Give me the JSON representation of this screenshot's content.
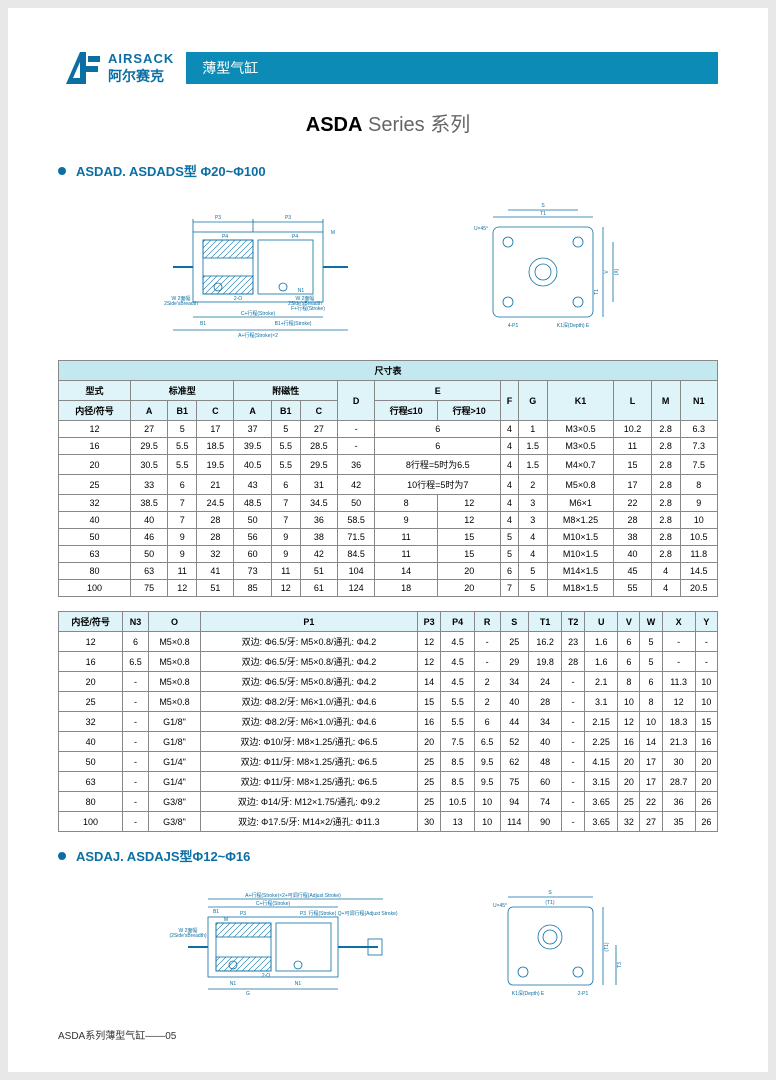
{
  "logo": {
    "en": "AIRSACK",
    "cn": "阿尔赛克"
  },
  "banner": "薄型气缸",
  "series": {
    "bold": "ASDA",
    "series_word": "Series",
    "cn": "系列"
  },
  "section1": "ASDAD. ASDADS型 Φ20~Φ100",
  "section2": "ASDAJ. ASDAJS型Φ12~Φ16",
  "dim_table_title": "尺寸表",
  "t1_headers": {
    "model": "型式",
    "std": "标准型",
    "mag": "附磁性",
    "bore": "内径/符号",
    "cols": [
      "A",
      "B1",
      "C",
      "A",
      "B1",
      "C",
      "D",
      "行程≤10",
      "行程>10",
      "F",
      "G",
      "K1",
      "L",
      "M",
      "N1"
    ],
    "E": "E"
  },
  "t1_rows": [
    [
      "12",
      "27",
      "5",
      "17",
      "37",
      "5",
      "27",
      "-",
      "6",
      "",
      "4",
      "1",
      "M3×0.5",
      "10.2",
      "2.8",
      "6.3"
    ],
    [
      "16",
      "29.5",
      "5.5",
      "18.5",
      "39.5",
      "5.5",
      "28.5",
      "-",
      "6",
      "",
      "4",
      "1.5",
      "M3×0.5",
      "11",
      "2.8",
      "7.3"
    ],
    [
      "20",
      "30.5",
      "5.5",
      "19.5",
      "40.5",
      "5.5",
      "29.5",
      "36",
      "8行程=5时为6.5",
      "",
      "4",
      "1.5",
      "M4×0.7",
      "15",
      "2.8",
      "7.5"
    ],
    [
      "25",
      "33",
      "6",
      "21",
      "43",
      "6",
      "31",
      "42",
      "10行程=5时为7",
      "",
      "4",
      "2",
      "M5×0.8",
      "17",
      "2.8",
      "8"
    ],
    [
      "32",
      "38.5",
      "7",
      "24.5",
      "48.5",
      "7",
      "34.5",
      "50",
      "8",
      "12",
      "4",
      "3",
      "M6×1",
      "22",
      "2.8",
      "9"
    ],
    [
      "40",
      "40",
      "7",
      "28",
      "50",
      "7",
      "36",
      "58.5",
      "9",
      "12",
      "4",
      "3",
      "M8×1.25",
      "28",
      "2.8",
      "10"
    ],
    [
      "50",
      "46",
      "9",
      "28",
      "56",
      "9",
      "38",
      "71.5",
      "11",
      "15",
      "5",
      "4",
      "M10×1.5",
      "38",
      "2.8",
      "10.5"
    ],
    [
      "63",
      "50",
      "9",
      "32",
      "60",
      "9",
      "42",
      "84.5",
      "11",
      "15",
      "5",
      "4",
      "M10×1.5",
      "40",
      "2.8",
      "11.8"
    ],
    [
      "80",
      "63",
      "11",
      "41",
      "73",
      "11",
      "51",
      "104",
      "14",
      "20",
      "6",
      "5",
      "M14×1.5",
      "45",
      "4",
      "14.5"
    ],
    [
      "100",
      "75",
      "12",
      "51",
      "85",
      "12",
      "61",
      "124",
      "18",
      "20",
      "7",
      "5",
      "M18×1.5",
      "55",
      "4",
      "20.5"
    ]
  ],
  "t2_headers": [
    "内径/符号",
    "N3",
    "O",
    "P1",
    "P3",
    "P4",
    "R",
    "S",
    "T1",
    "T2",
    "U",
    "V",
    "W",
    "X",
    "Y"
  ],
  "t2_rows": [
    [
      "12",
      "6",
      "M5×0.8",
      "双边: Φ6.5/牙: M5×0.8/通孔: Φ4.2",
      "12",
      "4.5",
      "-",
      "25",
      "16.2",
      "23",
      "1.6",
      "6",
      "5",
      "-",
      "-"
    ],
    [
      "16",
      "6.5",
      "M5×0.8",
      "双边: Φ6.5/牙: M5×0.8/通孔: Φ4.2",
      "12",
      "4.5",
      "-",
      "29",
      "19.8",
      "28",
      "1.6",
      "6",
      "5",
      "-",
      "-"
    ],
    [
      "20",
      "-",
      "M5×0.8",
      "双边: Φ6.5/牙: M5×0.8/通孔: Φ4.2",
      "14",
      "4.5",
      "2",
      "34",
      "24",
      "-",
      "2.1",
      "8",
      "6",
      "11.3",
      "10"
    ],
    [
      "25",
      "-",
      "M5×0.8",
      "双边: Φ8.2/牙: M6×1.0/通孔: Φ4.6",
      "15",
      "5.5",
      "2",
      "40",
      "28",
      "-",
      "3.1",
      "10",
      "8",
      "12",
      "10"
    ],
    [
      "32",
      "-",
      "G1/8\"",
      "双边: Φ8.2/牙: M6×1.0/通孔: Φ4.6",
      "16",
      "5.5",
      "6",
      "44",
      "34",
      "-",
      "2.15",
      "12",
      "10",
      "18.3",
      "15"
    ],
    [
      "40",
      "-",
      "G1/8\"",
      "双边: Φ10/牙: M8×1.25/通孔: Φ6.5",
      "20",
      "7.5",
      "6.5",
      "52",
      "40",
      "-",
      "2.25",
      "16",
      "14",
      "21.3",
      "16"
    ],
    [
      "50",
      "-",
      "G1/4\"",
      "双边: Φ11/牙: M8×1.25/通孔: Φ6.5",
      "25",
      "8.5",
      "9.5",
      "62",
      "48",
      "-",
      "4.15",
      "20",
      "17",
      "30",
      "20"
    ],
    [
      "63",
      "-",
      "G1/4\"",
      "双边: Φ11/牙: M8×1.25/通孔: Φ6.5",
      "25",
      "8.5",
      "9.5",
      "75",
      "60",
      "-",
      "3.15",
      "20",
      "17",
      "28.7",
      "20"
    ],
    [
      "80",
      "-",
      "G3/8\"",
      "双边: Φ14/牙: M12×1.75/通孔: Φ9.2",
      "25",
      "10.5",
      "10",
      "94",
      "74",
      "-",
      "3.65",
      "25",
      "22",
      "36",
      "26"
    ],
    [
      "100",
      "-",
      "G3/8\"",
      "双边: Φ17.5/牙: M14×2/通孔: Φ11.3",
      "30",
      "13",
      "10",
      "114",
      "90",
      "-",
      "3.65",
      "32",
      "27",
      "35",
      "26"
    ]
  ],
  "footer": "ASDA系列薄型气缸——05",
  "diagram_labels": {
    "d1": [
      "P3",
      "P3",
      "M",
      "P4",
      "P4",
      "W 2面幅",
      "2Side'sBreadth",
      "2-O",
      "N1",
      "F+行程(Stroke)",
      "C+行程(Stroke)",
      "B1+行程(Stroke)",
      "B1",
      "A+行程(Stroke)×2",
      "W 2面幅",
      "2Side'sBreadth"
    ],
    "d2": [
      "S",
      "T1",
      "U×45°",
      "V",
      "(X)",
      "T1",
      "K1深(Depth) E",
      "4-P1"
    ],
    "d3": [
      "A+行程(Stroke)×2+可调行程(Adjust Stroke)",
      "C+行程(Stroke)",
      "B1",
      "M",
      "P3",
      "P3",
      "行程(Stroke) Q+可调行程(Adjust Stroke)",
      "W 2面幅",
      "(2Side'sBreadth)",
      "N1",
      "N1",
      "2-O",
      "G"
    ],
    "d4": [
      "S",
      "(T1)",
      "U×45°",
      "K1深(Depth) E",
      "2-P1",
      "(T1)",
      "T3"
    ]
  },
  "colors": {
    "brand": "#0b6fa4",
    "banner": "#0b8bb5",
    "th_bg": "#dff4f8",
    "hdr_bg": "#c4e8ef",
    "border": "#888"
  }
}
